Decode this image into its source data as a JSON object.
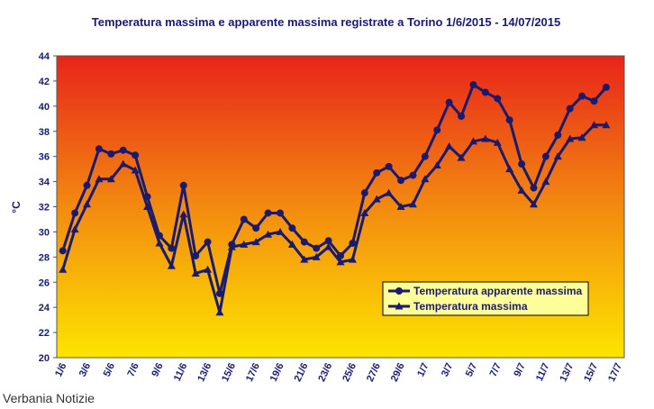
{
  "chart_data": {
    "type": "line",
    "title": "Temperatura massima e apparente massima registrate a Torino 1/6/2015 - 14/07/2015",
    "y_label": "°C",
    "watermark": "Verbania Notizie",
    "categories": [
      "1/6",
      null,
      "3/6",
      null,
      "5/6",
      null,
      "7/6",
      null,
      "9/6",
      null,
      "11/6",
      null,
      "13/6",
      null,
      "15/6",
      null,
      "17/6",
      null,
      "19/6",
      null,
      "21/6",
      null,
      "23/6",
      null,
      "25/6",
      null,
      "27/6",
      null,
      "29/6",
      null,
      "1/7",
      null,
      "3/7",
      null,
      "5/7",
      null,
      "7/7",
      null,
      "9/7",
      null,
      "11/7",
      null,
      "13/7",
      null,
      "15/7",
      null,
      "17/7"
    ],
    "series": [
      {
        "name": "Temperatura apparente massima",
        "color": "#1a1a6e",
        "marker": "circle",
        "values": [
          28.5,
          31.5,
          33.7,
          36.6,
          36.2,
          36.5,
          36.1,
          32.8,
          29.7,
          28.7,
          33.7,
          28.1,
          29.2,
          25.1,
          29,
          31,
          30.3,
          31.5,
          31.5,
          30.3,
          29.2,
          28.7,
          29.3,
          28.1,
          29.1,
          33.1,
          34.7,
          35.2,
          34.1,
          34.5,
          36,
          38.1,
          40.3,
          39.2,
          41.7,
          41.1,
          40.6,
          38.9,
          35.4,
          33.5,
          36,
          37.7,
          39.8,
          40.8,
          40.4,
          41.5,
          null
        ]
      },
      {
        "name": "Temperatura massima",
        "color": "#1a1a6e",
        "marker": "triangle",
        "values": [
          27,
          30.2,
          32.2,
          34.2,
          34.2,
          35.4,
          34.9,
          32,
          29.1,
          27.3,
          31.4,
          26.7,
          27,
          23.6,
          28.8,
          29,
          29.2,
          29.8,
          30,
          29,
          27.8,
          28,
          28.8,
          27.6,
          27.8,
          31.5,
          32.6,
          33.1,
          32,
          32.2,
          34.2,
          35.3,
          36.8,
          35.9,
          37.2,
          37.4,
          37.1,
          35,
          33.3,
          32.2,
          34,
          36,
          37.4,
          37.5,
          38.5,
          38.5,
          null
        ]
      }
    ],
    "ylim": [
      20,
      44
    ],
    "yticks": [
      20,
      22,
      24,
      26,
      28,
      30,
      32,
      34,
      36,
      38,
      40,
      42,
      44
    ],
    "grid": false,
    "legend_position": "lower right"
  }
}
